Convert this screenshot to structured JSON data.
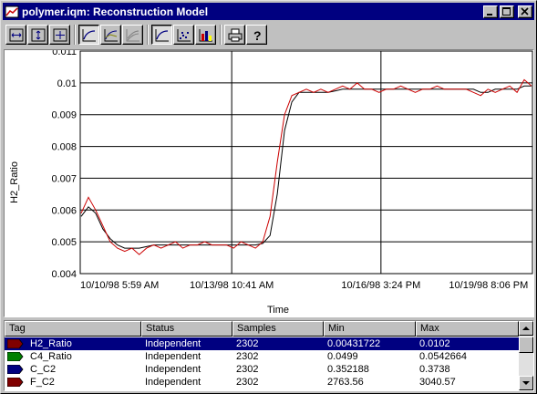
{
  "window": {
    "title": "polymer.iqm: Reconstruction Model"
  },
  "toolbar": {
    "buttons": [
      "fit-width-icon",
      "fit-height-icon",
      "fit-all-icon",
      "trend-icon",
      "multi-trend-icon",
      "smooth-trend-icon",
      "line-chart-icon",
      "scatter-icon",
      "bar-chart-icon",
      "print-icon",
      "help-icon"
    ]
  },
  "chart_data": {
    "type": "line",
    "ylabel": "H2_Ratio",
    "xlabel": "Time",
    "ylim": [
      0.004,
      0.011
    ],
    "yticks": [
      "0.011",
      "0.01",
      "0.009",
      "0.008",
      "0.007",
      "0.006",
      "0.005",
      "0.004"
    ],
    "xticks": [
      "10/10/98 5:59 AM",
      "10/13/98 10:41 AM",
      "10/16/98 3:24 PM",
      "10/19/98 8:06 PM"
    ],
    "grid": true,
    "series": [
      {
        "color": "#000000",
        "values": [
          0.0058,
          0.0061,
          0.0059,
          0.0054,
          0.0051,
          0.0049,
          0.0048,
          0.0048,
          0.0048,
          0.00485,
          0.0049,
          0.0049,
          0.0049,
          0.0049,
          0.0049,
          0.0049,
          0.0049,
          0.0049,
          0.0049,
          0.0049,
          0.0049,
          0.0049,
          0.0049,
          0.0049,
          0.0049,
          0.00495,
          0.0052,
          0.0065,
          0.0085,
          0.0094,
          0.0097,
          0.0097,
          0.0097,
          0.0097,
          0.0097,
          0.00975,
          0.0098,
          0.0098,
          0.0098,
          0.0098,
          0.0098,
          0.0098,
          0.0098,
          0.0098,
          0.0098,
          0.0098,
          0.0098,
          0.0098,
          0.0098,
          0.0098,
          0.0098,
          0.0098,
          0.0098,
          0.0098,
          0.0098,
          0.0097,
          0.0097,
          0.0098,
          0.0098,
          0.0098,
          0.0098,
          0.0099,
          0.0099
        ]
      },
      {
        "color": "#cc0000",
        "values": [
          0.0059,
          0.0064,
          0.006,
          0.0055,
          0.005,
          0.0048,
          0.0047,
          0.0048,
          0.0046,
          0.0048,
          0.0049,
          0.0048,
          0.0049,
          0.005,
          0.0048,
          0.0049,
          0.0049,
          0.005,
          0.0049,
          0.0049,
          0.0049,
          0.0048,
          0.005,
          0.0049,
          0.0048,
          0.005,
          0.0058,
          0.0075,
          0.009,
          0.0096,
          0.0097,
          0.0098,
          0.0097,
          0.0098,
          0.0097,
          0.0098,
          0.0099,
          0.0098,
          0.01,
          0.0098,
          0.0098,
          0.0097,
          0.0098,
          0.0098,
          0.0099,
          0.0098,
          0.0097,
          0.0098,
          0.0098,
          0.0099,
          0.0098,
          0.0098,
          0.0098,
          0.0098,
          0.0097,
          0.0096,
          0.0098,
          0.0097,
          0.0098,
          0.0099,
          0.0097,
          0.0101,
          0.0099
        ]
      }
    ]
  },
  "table": {
    "columns": [
      "Tag",
      "Status",
      "Samples",
      "Min",
      "Max"
    ],
    "rows": [
      {
        "tag": "H2_Ratio",
        "status": "Independent",
        "samples": "2302",
        "min": "0.00431722",
        "max": "0.0102",
        "color": "#800000",
        "selected": true
      },
      {
        "tag": "C4_Ratio",
        "status": "Independent",
        "samples": "2302",
        "min": "0.0499",
        "max": "0.0542664",
        "color": "#008000",
        "selected": false
      },
      {
        "tag": "C_C2",
        "status": "Independent",
        "samples": "2302",
        "min": "0.352188",
        "max": "0.3738",
        "color": "#000080",
        "selected": false
      },
      {
        "tag": "F_C2",
        "status": "Independent",
        "samples": "2302",
        "min": "2763.56",
        "max": "3040.57",
        "color": "#800000",
        "selected": false
      }
    ]
  }
}
